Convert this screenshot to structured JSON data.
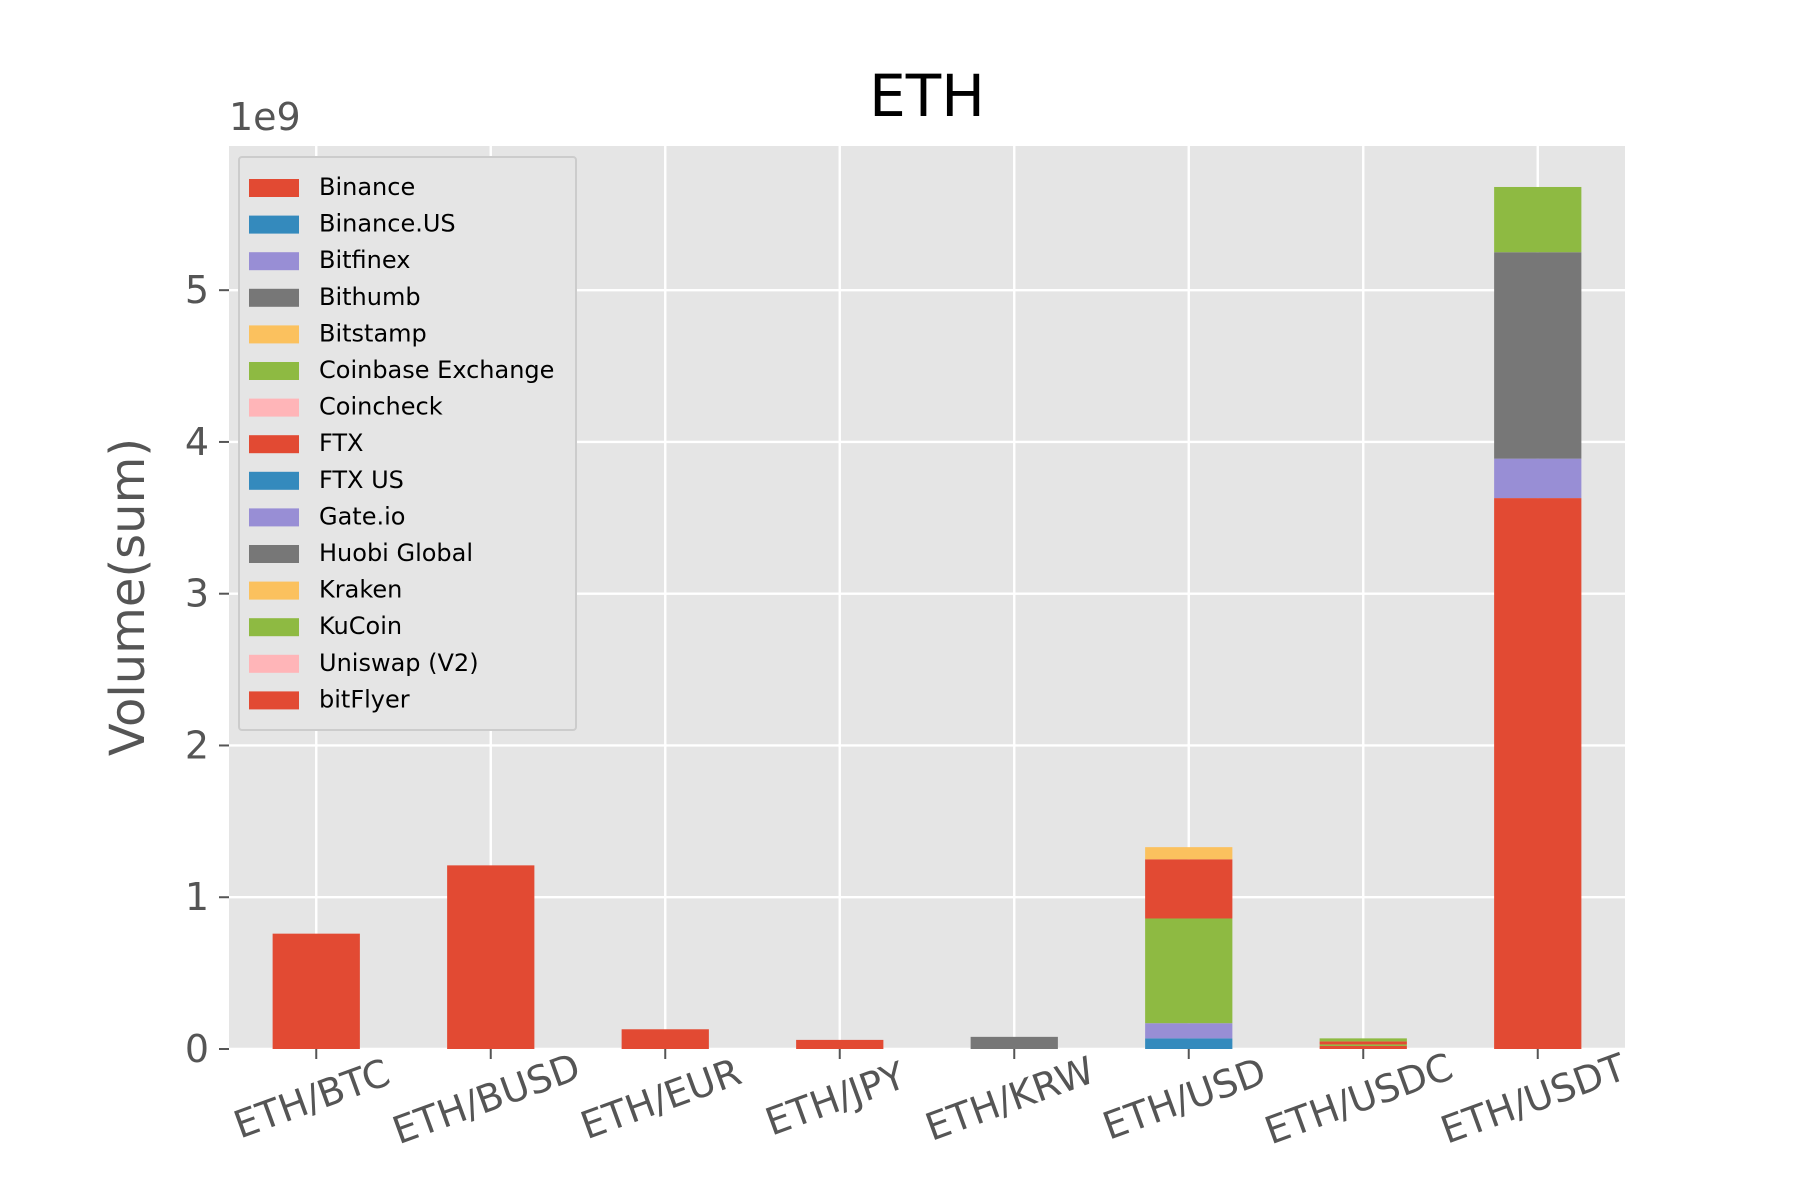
{
  "chart_data": {
    "type": "bar",
    "stacked": true,
    "title": "ETH",
    "xlabel": "",
    "ylabel": "Volume(sum)",
    "y_offset_label": "1e9",
    "ylim": [
      0,
      5.95
    ],
    "yticks": [
      0,
      1,
      2,
      3,
      4,
      5
    ],
    "grid": true,
    "legend_position": "top-left",
    "categories": [
      "ETH/BTC",
      "ETH/BUSD",
      "ETH/EUR",
      "ETH/JPY",
      "ETH/KRW",
      "ETH/USD",
      "ETH/USDC",
      "ETH/USDT"
    ],
    "series": [
      {
        "name": "Binance",
        "color": "#E24A33",
        "values": [
          0.76,
          1.21,
          0.13,
          0,
          0,
          0,
          0.02,
          3.63
        ]
      },
      {
        "name": "Binance.US",
        "color": "#348ABD",
        "values": [
          0,
          0,
          0,
          0,
          0,
          0,
          0,
          0
        ]
      },
      {
        "name": "Bitfinex",
        "color": "#988ED5",
        "values": [
          0,
          0,
          0,
          0,
          0,
          0,
          0,
          0
        ]
      },
      {
        "name": "Bithumb",
        "color": "#777777",
        "values": [
          0,
          0,
          0,
          0,
          0.08,
          0,
          0,
          0
        ]
      },
      {
        "name": "Bitstamp",
        "color": "#FBC15E",
        "values": [
          0,
          0,
          0,
          0,
          0,
          0,
          0,
          0
        ]
      },
      {
        "name": "Coinbase Exchange",
        "color": "#8EBA42",
        "values": [
          0,
          0,
          0,
          0,
          0,
          0,
          0.01,
          0
        ]
      },
      {
        "name": "Coincheck",
        "color": "#FFB5B8",
        "values": [
          0,
          0,
          0,
          0,
          0,
          0,
          0,
          0
        ]
      },
      {
        "name": "FTX",
        "color": "#E24A33",
        "values": [
          0,
          0,
          0,
          0,
          0,
          0,
          0.02,
          0
        ]
      },
      {
        "name": "FTX US",
        "color": "#348ABD",
        "values": [
          0,
          0,
          0,
          0,
          0,
          0.07,
          0,
          0
        ]
      },
      {
        "name": "Gate.io",
        "color": "#988ED5",
        "values": [
          0,
          0,
          0,
          0,
          0,
          0.1,
          0,
          0.26
        ]
      },
      {
        "name": "Huobi Global",
        "color": "#777777",
        "values": [
          0,
          0,
          0,
          0,
          0,
          0,
          0,
          1.36
        ]
      },
      {
        "name": "Kraken",
        "color": "#FBC15E",
        "values": [
          0,
          0,
          0,
          0,
          0,
          0,
          0,
          0
        ]
      },
      {
        "name": "KuCoin",
        "color": "#8EBA42",
        "values": [
          0,
          0,
          0,
          0,
          0,
          0.69,
          0.02,
          0.43
        ]
      },
      {
        "name": "Uniswap (V2)",
        "color": "#FFB5B8",
        "values": [
          0,
          0,
          0,
          0,
          0,
          0,
          0,
          0
        ]
      },
      {
        "name": "bitFlyer",
        "color": "#E24A33",
        "values": [
          0,
          0,
          0,
          0.06,
          0,
          0,
          0,
          0
        ]
      },
      {
        "name": "",
        "color": "#E24A33",
        "values": [
          0,
          0,
          0,
          0,
          0,
          0.39,
          0,
          0
        ]
      },
      {
        "name": "",
        "color": "#FBC15E",
        "values": [
          0,
          0,
          0,
          0,
          0,
          0.08,
          0,
          0
        ]
      }
    ]
  }
}
